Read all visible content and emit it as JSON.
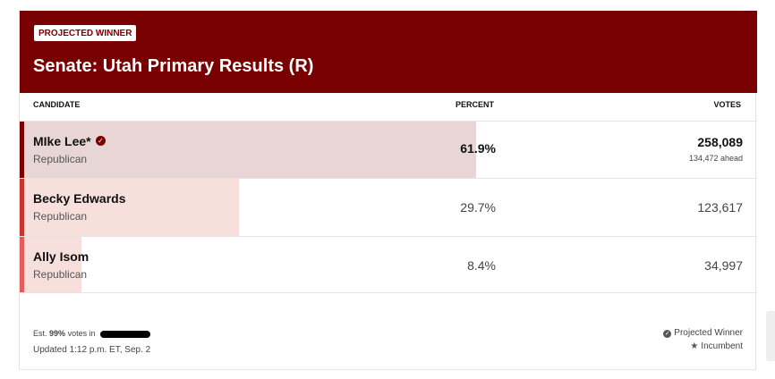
{
  "header": {
    "badge": "PROJECTED WINNER",
    "title": "Senate: Utah Primary Results (R)"
  },
  "table": {
    "columns": [
      "CANDIDATE",
      "PERCENT",
      "VOTES"
    ],
    "rows": [
      {
        "name": "MIke Lee*",
        "party": "Republican",
        "percent": 61.9,
        "percent_label": "61.9%",
        "votes": "258,089",
        "lead": "134,472 ahead",
        "winner": true,
        "color": "#7a0000",
        "bar_color": "#e8d6d6"
      },
      {
        "name": "Becky Edwards",
        "party": "Republican",
        "percent": 29.7,
        "percent_label": "29.7%",
        "votes": "123,617",
        "winner": false,
        "color": "#c8352c",
        "bar_color": "#f7dfdc"
      },
      {
        "name": "Ally Isom",
        "party": "Republican",
        "percent": 8.4,
        "percent_label": "8.4%",
        "votes": "34,997",
        "winner": false,
        "color": "#e35d5d",
        "bar_color": "#f7dfdc"
      }
    ]
  },
  "footer": {
    "est_prefix": "Est.",
    "est_value": "99%",
    "est_suffix": "votes in",
    "updated": "Updated 1:12 p.m. ET, Sep. 2",
    "legend": [
      "Projected Winner",
      "Incumbent"
    ]
  }
}
